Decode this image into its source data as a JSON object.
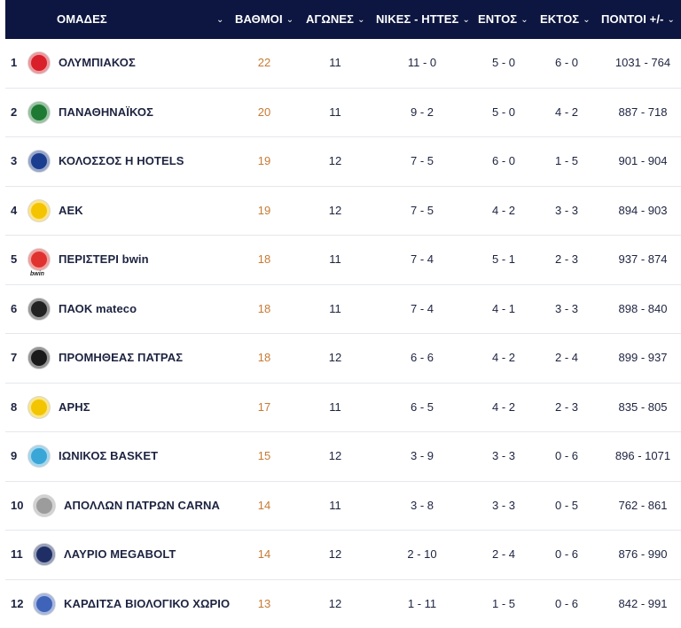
{
  "header": {
    "team": "ΟΜΑΔΕΣ",
    "points": "ΒΑΘΜΟΙ",
    "games": "ΑΓΩΝΕΣ",
    "wins_losses": "ΝΙΚΕΣ - ΗΤΤΕΣ",
    "home": "ΕΝΤΟΣ",
    "away": "ΕΚΤΟΣ",
    "score_diff": "ΠΟΝΤΟΙ +/-"
  },
  "rows": [
    {
      "pos": "1",
      "team": "ΟΛΥΜΠΙΑΚΟΣ",
      "points": "22",
      "games": "11",
      "wl": "11 - 0",
      "home": "5 - 0",
      "away": "6 - 0",
      "diff": "1031 - 764",
      "logo_icon": "olympiakos-logo-icon",
      "logo_color": "#d81f2a"
    },
    {
      "pos": "2",
      "team": "ΠΑΝΑΘΗΝΑΪΚΟΣ",
      "points": "20",
      "games": "11",
      "wl": "9 - 2",
      "home": "5 - 0",
      "away": "4 - 2",
      "diff": "887 - 718",
      "logo_icon": "panathinaikos-logo-icon",
      "logo_color": "#1e7a32"
    },
    {
      "pos": "3",
      "team": "ΚΟΛΟΣΣΟΣ H HOTELS",
      "points": "19",
      "games": "12",
      "wl": "7 - 5",
      "home": "6 - 0",
      "away": "1 - 5",
      "diff": "901 - 904",
      "logo_icon": "kolossos-logo-icon",
      "logo_color": "#1b3d8f"
    },
    {
      "pos": "4",
      "team": "ΑΕΚ",
      "points": "19",
      "games": "12",
      "wl": "7 - 5",
      "home": "4 - 2",
      "away": "3 - 3",
      "diff": "894 - 903",
      "logo_icon": "aek-logo-icon",
      "logo_color": "#f5c400"
    },
    {
      "pos": "5",
      "team": "ΠΕΡΙΣΤΕΡΙ bwin",
      "points": "18",
      "games": "11",
      "wl": "7 - 4",
      "home": "5 - 1",
      "away": "2 - 3",
      "diff": "937 - 874",
      "logo_icon": "peristeri-logo-icon",
      "logo_color": "#e0332f",
      "logo_sub": "bwin"
    },
    {
      "pos": "6",
      "team": "ΠΑΟΚ mateco",
      "points": "18",
      "games": "11",
      "wl": "7 - 4",
      "home": "4 - 1",
      "away": "3 - 3",
      "diff": "898 - 840",
      "logo_icon": "paok-logo-icon",
      "logo_color": "#222222"
    },
    {
      "pos": "7",
      "team": "ΠΡΟΜΗΘΕΑΣ ΠΑΤΡΑΣ",
      "points": "18",
      "games": "12",
      "wl": "6 - 6",
      "home": "4 - 2",
      "away": "2 - 4",
      "diff": "899 - 937",
      "logo_icon": "promitheas-logo-icon",
      "logo_color": "#1a1a1a"
    },
    {
      "pos": "8",
      "team": "ΑΡΗΣ",
      "points": "17",
      "games": "11",
      "wl": "6 - 5",
      "home": "4 - 2",
      "away": "2 - 3",
      "diff": "835 - 805",
      "logo_icon": "aris-logo-icon",
      "logo_color": "#f2c500"
    },
    {
      "pos": "9",
      "team": "ΙΩΝΙΚΟΣ BASKET",
      "points": "15",
      "games": "12",
      "wl": "3 - 9",
      "home": "3 - 3",
      "away": "0 - 6",
      "diff": "896 - 1071",
      "logo_icon": "ionikos-logo-icon",
      "logo_color": "#3aa6d8"
    },
    {
      "pos": "10",
      "team": "ΑΠΟΛΛΩΝ ΠΑΤΡΩΝ CARNA",
      "points": "14",
      "games": "11",
      "wl": "3 - 8",
      "home": "3 - 3",
      "away": "0 - 5",
      "diff": "762 - 861",
      "logo_icon": "apollon-logo-icon",
      "logo_color": "#9c9c9c"
    },
    {
      "pos": "11",
      "team": "ΛΑΥΡΙΟ MEGABOLT",
      "points": "14",
      "games": "12",
      "wl": "2 - 10",
      "home": "2 - 4",
      "away": "0 - 6",
      "diff": "876 - 990",
      "logo_icon": "lavrio-logo-icon",
      "logo_color": "#1f2f66"
    },
    {
      "pos": "12",
      "team": "ΚΑΡΔΙΤΣΑ ΒΙΟΛΟΓΙΚΟ ΧΩΡΙΟ",
      "points": "13",
      "games": "12",
      "wl": "1 - 11",
      "home": "1 - 5",
      "away": "0 - 6",
      "diff": "842 - 991",
      "logo_icon": "karditsa-logo-icon",
      "logo_color": "#3e63b8"
    }
  ],
  "colors": {
    "header_bg": "#0d1640",
    "points_text": "#c77a32",
    "text": "#1d2340"
  }
}
